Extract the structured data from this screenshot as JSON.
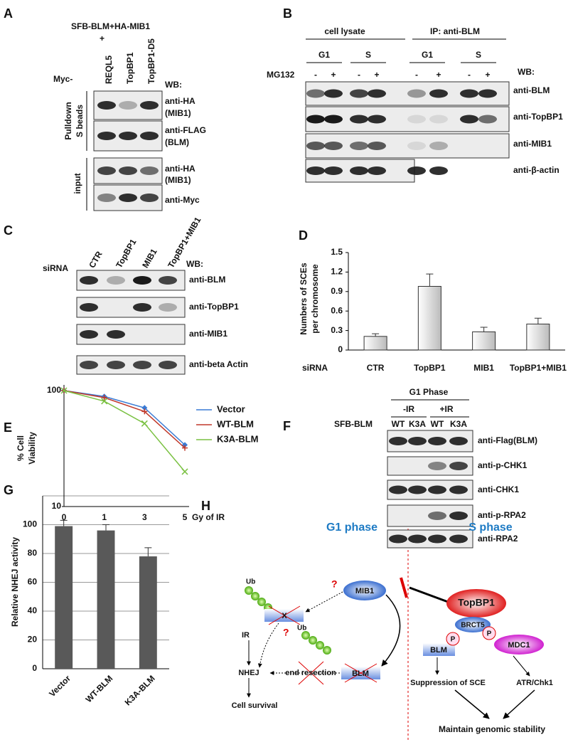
{
  "panel_labels": [
    "A",
    "B",
    "C",
    "D",
    "E",
    "F",
    "G",
    "H"
  ],
  "blot_a": {
    "title": "SFB-BLM+HA-MIB1",
    "plus": "+",
    "prefix": "Myc-",
    "lanes": [
      "REQL5",
      "TopBP1",
      "TopBP1-D5"
    ],
    "wb": "WB:",
    "groups": [
      [
        "Pulldown",
        "S beads"
      ],
      [
        "input"
      ]
    ],
    "rows": [
      [
        "anti-HA",
        "(MIB1)"
      ],
      [
        "anti-FLAG",
        "(BLM)"
      ],
      [
        "anti-HA",
        "(MIB1)"
      ],
      [
        "anti-Myc"
      ]
    ]
  },
  "blot_b": {
    "groups": [
      "cell lysate",
      "IP: anti-BLM"
    ],
    "phases": [
      "G1",
      "S",
      "G1",
      "S"
    ],
    "treatment": "MG132",
    "signs": [
      "-",
      "+",
      "-",
      "+",
      "-",
      "+",
      "-",
      "+"
    ],
    "wb": "WB:",
    "rows": [
      "anti-BLM",
      "anti-TopBP1",
      "anti-MIB1",
      "anti-β-actin"
    ]
  },
  "blot_c": {
    "treatment": "siRNA",
    "lanes": [
      "CTR",
      "TopBP1",
      "MIB1",
      "TopBP1+MIB1"
    ],
    "wb": "WB:",
    "rows": [
      "anti-BLM",
      "anti-TopBP1",
      "anti-MIB1",
      "anti-beta Actin"
    ]
  },
  "blot_f": {
    "phase": "G1 Phase",
    "conditions": [
      "-IR",
      "+IR"
    ],
    "construct": "SFB-BLM",
    "lanes": [
      "WT",
      "K3A",
      "WT",
      "K3A"
    ],
    "rows": [
      "anti-Flag(BLM)",
      "anti-p-CHK1",
      "anti-CHK1",
      "anti-p-RPA2",
      "anti-RPA2"
    ]
  },
  "chart_data": [
    {
      "type": "bar",
      "ylabel": [
        "Numbers of SCEs",
        "per chromosome"
      ],
      "xlabel": "siRNA",
      "categories": [
        "CTR",
        "TopBP1",
        "MIB1",
        "TopBP1+MIB1"
      ],
      "values": [
        0.21,
        0.98,
        0.28,
        0.4
      ],
      "errors": [
        0.04,
        0.19,
        0.07,
        0.09
      ],
      "ylim": [
        0,
        1.5
      ],
      "yticks": [
        0,
        0.3,
        0.6,
        0.9,
        1.2,
        1.5
      ],
      "grid": false,
      "color": "#e4e4e4"
    },
    {
      "type": "line",
      "ylabel": [
        "% Cell",
        "Viability"
      ],
      "xlabel": "Gy of IR",
      "categories": [
        "0",
        "1",
        "3",
        "5"
      ],
      "ylim": [
        10,
        100
      ],
      "yticks": [
        10,
        100
      ],
      "log_scale": true,
      "legend": "right",
      "series": [
        {
          "name": "Vector",
          "color": "#3a7bd5",
          "values": [
            100,
            89,
            71,
            34
          ]
        },
        {
          "name": "WT-BLM",
          "color": "#c0392b",
          "values": [
            100,
            87,
            66,
            32
          ]
        },
        {
          "name": "K3A-BLM",
          "color": "#7ac142",
          "values": [
            100,
            81,
            52,
            20
          ]
        }
      ]
    },
    {
      "type": "bar",
      "ylabel": "Relative NHEJ activity",
      "categories": [
        "Vector",
        "WT-BLM",
        "K3A-BLM"
      ],
      "values": [
        99,
        96,
        78
      ],
      "errors": [
        4,
        4,
        6
      ],
      "ylim": [
        0,
        120
      ],
      "yticks": [
        0,
        20,
        40,
        60,
        80,
        100
      ],
      "grid": true,
      "color": "#595959"
    }
  ],
  "diagram": {
    "phases": [
      "G1 phase",
      "S phase"
    ],
    "ub": [
      "Ub",
      "Ub"
    ],
    "questions": [
      "?",
      "?"
    ],
    "mib1": "MIB1",
    "blocked": "X",
    "ir": "IR",
    "nhej": "NHEJ",
    "end_resection": "end resection",
    "blm": [
      "BLM",
      "BLM"
    ],
    "survival": "Cell survival",
    "topbp1": "TopBP1",
    "brct5": "BRCT5",
    "phospho": [
      "P",
      "P"
    ],
    "mdc1": "MDC1",
    "sce": "Suppression of SCE",
    "atr": "ATR/Chk1",
    "stability": "Maintain genomic stability"
  }
}
